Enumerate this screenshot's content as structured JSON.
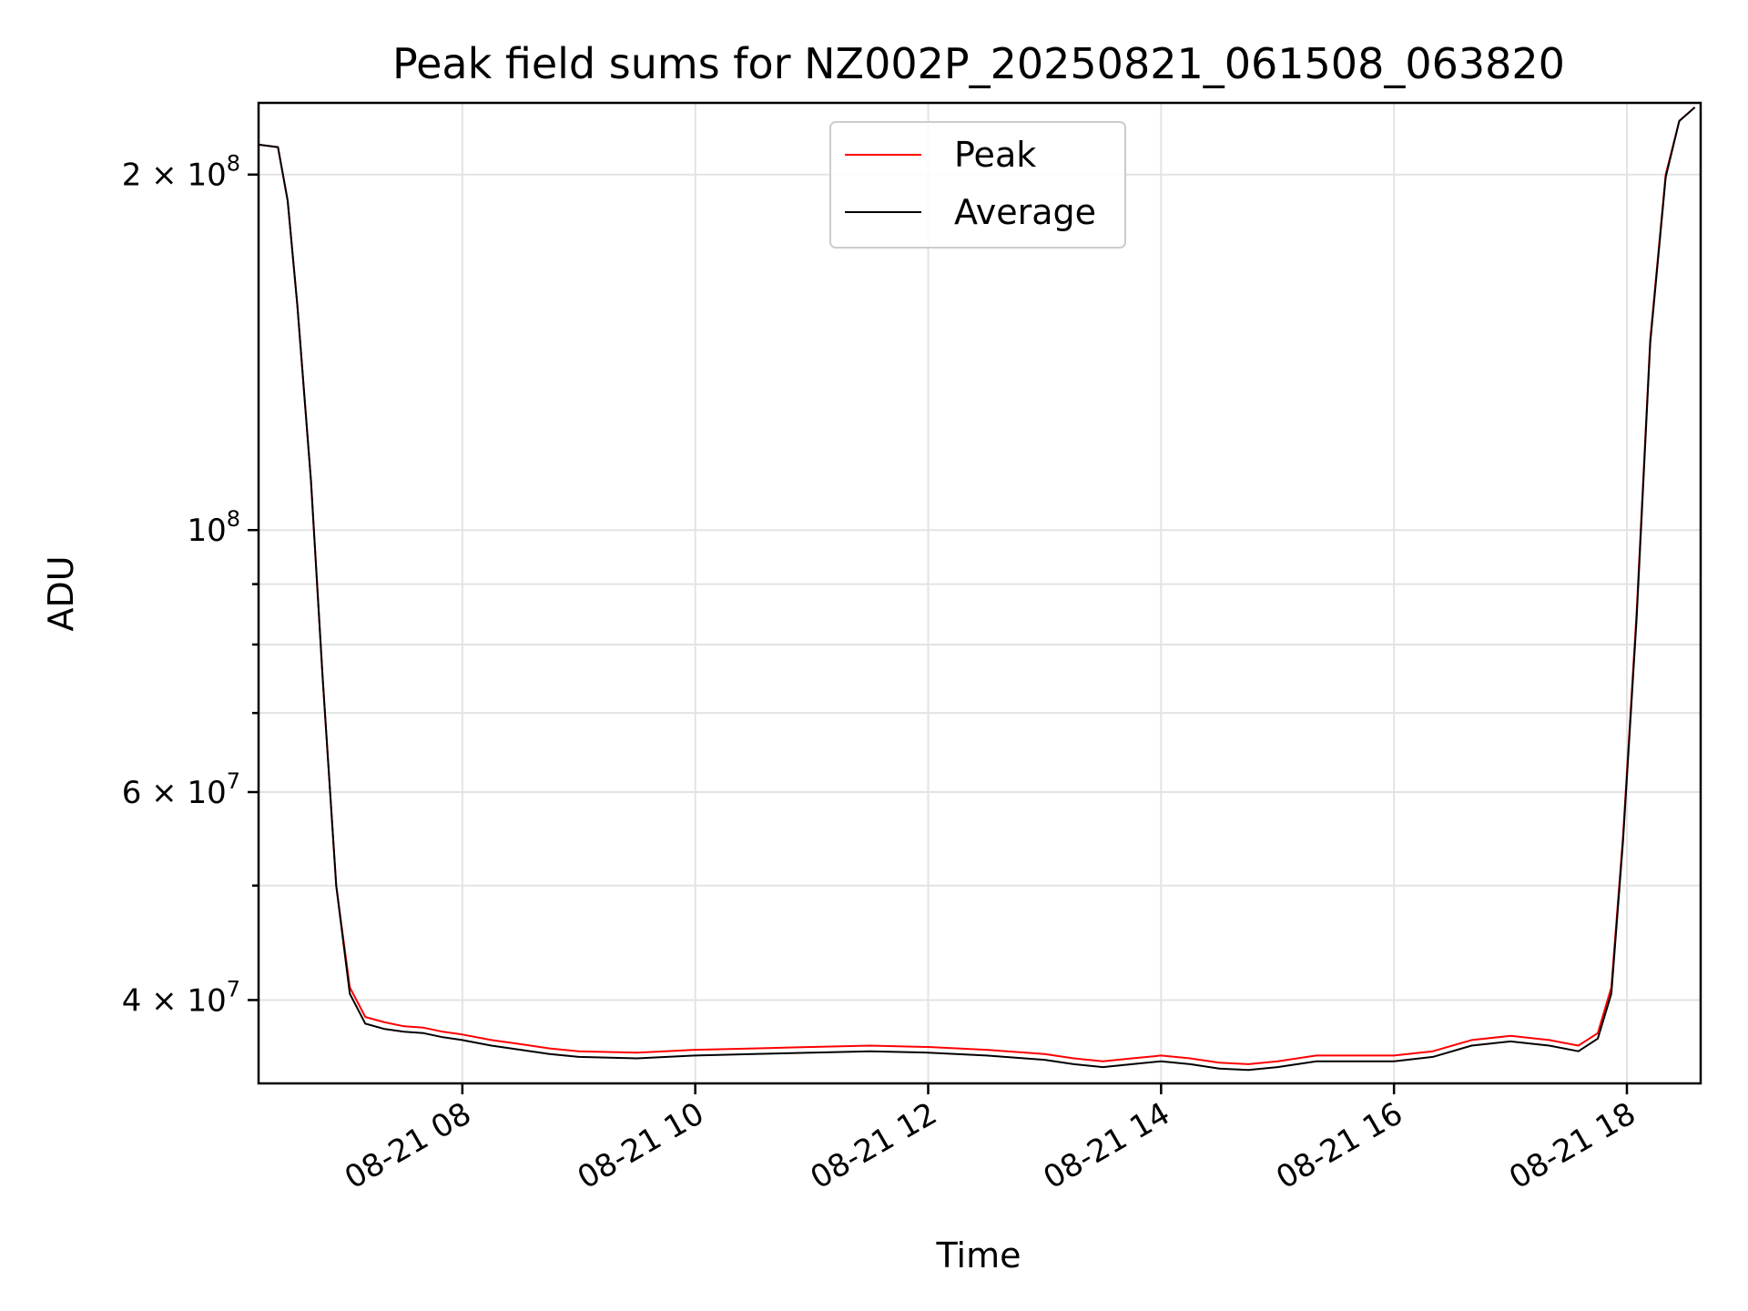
{
  "chart_data": {
    "type": "line",
    "title": "Peak field sums for NZ002P_20250821_061508_063820",
    "xlabel": "Time",
    "ylabel": "ADU",
    "yscale": "log",
    "ylim": [
      34000000,
      230000000
    ],
    "xlim": [
      "2025-08-21 06:15",
      "2025-08-21 18:38"
    ],
    "x_ticks": [
      {
        "value": "2025-08-21 08:00",
        "label": "08-21 08"
      },
      {
        "value": "2025-08-21 10:00",
        "label": "08-21 10"
      },
      {
        "value": "2025-08-21 12:00",
        "label": "08-21 12"
      },
      {
        "value": "2025-08-21 14:00",
        "label": "08-21 14"
      },
      {
        "value": "2025-08-21 16:00",
        "label": "08-21 16"
      },
      {
        "value": "2025-08-21 18:00",
        "label": "08-21 18"
      }
    ],
    "y_major_ticks": [
      {
        "value": 40000000,
        "mantissa": "4",
        "exp": "7"
      },
      {
        "value": 60000000,
        "mantissa": "6",
        "exp": "7"
      },
      {
        "value": 100000000,
        "mantissa": "",
        "exp": "8"
      },
      {
        "value": 200000000,
        "mantissa": "2",
        "exp": "8"
      }
    ],
    "y_minor_ticks": [
      50000000,
      70000000,
      80000000,
      90000000
    ],
    "grid": true,
    "legend": {
      "position": "upper-center",
      "entries": [
        "Peak",
        "Average"
      ]
    },
    "series": [
      {
        "name": "Peak",
        "color": "#ff0000",
        "points": [
          [
            "2025-08-21 06:15",
            212000000
          ],
          [
            "2025-08-21 06:25",
            211000000
          ],
          [
            "2025-08-21 06:30",
            190000000
          ],
          [
            "2025-08-21 06:35",
            155000000
          ],
          [
            "2025-08-21 06:42",
            110000000
          ],
          [
            "2025-08-21 06:48",
            75000000
          ],
          [
            "2025-08-21 06:55",
            50000000
          ],
          [
            "2025-08-21 07:02",
            41000000
          ],
          [
            "2025-08-21 07:10",
            38700000
          ],
          [
            "2025-08-21 07:20",
            38300000
          ],
          [
            "2025-08-21 07:30",
            38000000
          ],
          [
            "2025-08-21 07:40",
            37900000
          ],
          [
            "2025-08-21 07:50",
            37600000
          ],
          [
            "2025-08-21 08:00",
            37400000
          ],
          [
            "2025-08-21 08:15",
            37000000
          ],
          [
            "2025-08-21 08:30",
            36700000
          ],
          [
            "2025-08-21 08:45",
            36400000
          ],
          [
            "2025-08-21 09:00",
            36200000
          ],
          [
            "2025-08-21 09:30",
            36100000
          ],
          [
            "2025-08-21 10:00",
            36300000
          ],
          [
            "2025-08-21 10:30",
            36400000
          ],
          [
            "2025-08-21 11:00",
            36500000
          ],
          [
            "2025-08-21 11:30",
            36600000
          ],
          [
            "2025-08-21 12:00",
            36500000
          ],
          [
            "2025-08-21 12:30",
            36300000
          ],
          [
            "2025-08-21 13:00",
            36000000
          ],
          [
            "2025-08-21 13:15",
            35700000
          ],
          [
            "2025-08-21 13:30",
            35500000
          ],
          [
            "2025-08-21 13:45",
            35700000
          ],
          [
            "2025-08-21 14:00",
            35900000
          ],
          [
            "2025-08-21 14:15",
            35700000
          ],
          [
            "2025-08-21 14:30",
            35400000
          ],
          [
            "2025-08-21 14:45",
            35300000
          ],
          [
            "2025-08-21 15:00",
            35500000
          ],
          [
            "2025-08-21 15:20",
            35900000
          ],
          [
            "2025-08-21 15:40",
            35900000
          ],
          [
            "2025-08-21 16:00",
            35900000
          ],
          [
            "2025-08-21 16:20",
            36200000
          ],
          [
            "2025-08-21 16:40",
            37000000
          ],
          [
            "2025-08-21 17:00",
            37300000
          ],
          [
            "2025-08-21 17:20",
            37000000
          ],
          [
            "2025-08-21 17:35",
            36600000
          ],
          [
            "2025-08-21 17:45",
            37500000
          ],
          [
            "2025-08-21 17:52",
            41000000
          ],
          [
            "2025-08-21 17:58",
            55000000
          ],
          [
            "2025-08-21 18:05",
            85000000
          ],
          [
            "2025-08-21 18:12",
            145000000
          ],
          [
            "2025-08-21 18:20",
            200000000
          ],
          [
            "2025-08-21 18:27",
            222000000
          ],
          [
            "2025-08-21 18:35",
            228000000
          ]
        ]
      },
      {
        "name": "Average",
        "color": "#000000",
        "points": [
          [
            "2025-08-21 06:15",
            212000000
          ],
          [
            "2025-08-21 06:25",
            211000000
          ],
          [
            "2025-08-21 06:30",
            190000000
          ],
          [
            "2025-08-21 06:35",
            155000000
          ],
          [
            "2025-08-21 06:42",
            110000000
          ],
          [
            "2025-08-21 06:48",
            75000000
          ],
          [
            "2025-08-21 06:55",
            50000000
          ],
          [
            "2025-08-21 07:02",
            40500000
          ],
          [
            "2025-08-21 07:10",
            38200000
          ],
          [
            "2025-08-21 07:20",
            37800000
          ],
          [
            "2025-08-21 07:30",
            37600000
          ],
          [
            "2025-08-21 07:40",
            37500000
          ],
          [
            "2025-08-21 07:50",
            37200000
          ],
          [
            "2025-08-21 08:00",
            37000000
          ],
          [
            "2025-08-21 08:15",
            36600000
          ],
          [
            "2025-08-21 08:30",
            36300000
          ],
          [
            "2025-08-21 08:45",
            36000000
          ],
          [
            "2025-08-21 09:00",
            35800000
          ],
          [
            "2025-08-21 09:30",
            35700000
          ],
          [
            "2025-08-21 10:00",
            35900000
          ],
          [
            "2025-08-21 10:30",
            36000000
          ],
          [
            "2025-08-21 11:00",
            36100000
          ],
          [
            "2025-08-21 11:30",
            36200000
          ],
          [
            "2025-08-21 12:00",
            36100000
          ],
          [
            "2025-08-21 12:30",
            35900000
          ],
          [
            "2025-08-21 13:00",
            35600000
          ],
          [
            "2025-08-21 13:15",
            35300000
          ],
          [
            "2025-08-21 13:30",
            35100000
          ],
          [
            "2025-08-21 13:45",
            35300000
          ],
          [
            "2025-08-21 14:00",
            35500000
          ],
          [
            "2025-08-21 14:15",
            35300000
          ],
          [
            "2025-08-21 14:30",
            35000000
          ],
          [
            "2025-08-21 14:45",
            34900000
          ],
          [
            "2025-08-21 15:00",
            35100000
          ],
          [
            "2025-08-21 15:20",
            35500000
          ],
          [
            "2025-08-21 15:40",
            35500000
          ],
          [
            "2025-08-21 16:00",
            35500000
          ],
          [
            "2025-08-21 16:20",
            35800000
          ],
          [
            "2025-08-21 16:40",
            36600000
          ],
          [
            "2025-08-21 17:00",
            36900000
          ],
          [
            "2025-08-21 17:20",
            36600000
          ],
          [
            "2025-08-21 17:35",
            36200000
          ],
          [
            "2025-08-21 17:45",
            37100000
          ],
          [
            "2025-08-21 17:52",
            40500000
          ],
          [
            "2025-08-21 17:58",
            54500000
          ],
          [
            "2025-08-21 18:05",
            84000000
          ],
          [
            "2025-08-21 18:12",
            144000000
          ],
          [
            "2025-08-21 18:20",
            199000000
          ],
          [
            "2025-08-21 18:27",
            222000000
          ],
          [
            "2025-08-21 18:35",
            228000000
          ]
        ]
      }
    ]
  }
}
